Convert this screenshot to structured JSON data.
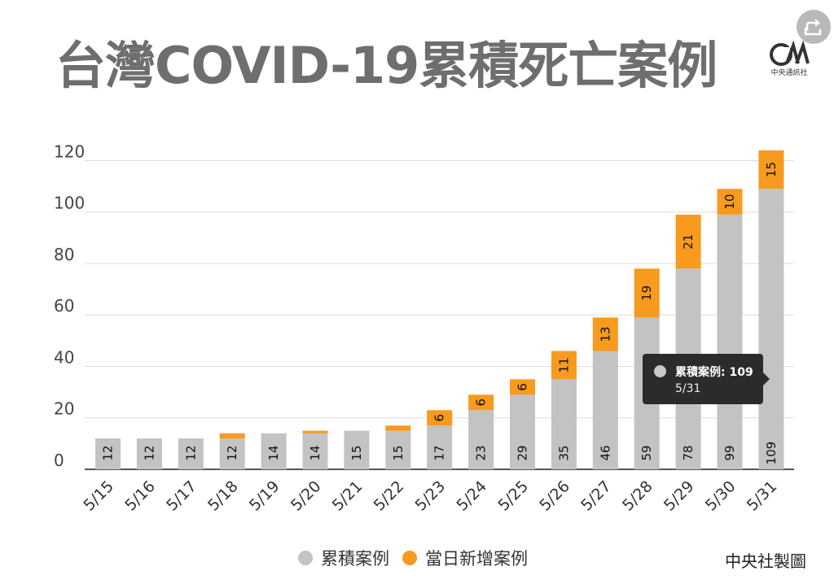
{
  "title": "台灣COVID-19累積死亡案例",
  "logo": {
    "text": "中央通訊社",
    "icon": "cna-logo-icon"
  },
  "share": {
    "icon": "share-icon"
  },
  "credit": "中央社製圖",
  "colors": {
    "cumulative": "#c3c3c3",
    "daily": "#f79a1e",
    "title": "#6e6e6e",
    "grid": "#dddddd"
  },
  "tooltip": {
    "label": "累積案例: 109",
    "date": "5/31"
  },
  "chart_data": {
    "type": "bar",
    "stacked": true,
    "categories": [
      "5/15",
      "5/16",
      "5/17",
      "5/18",
      "5/19",
      "5/20",
      "5/21",
      "5/22",
      "5/23",
      "5/24",
      "5/25",
      "5/26",
      "5/27",
      "5/28",
      "5/29",
      "5/30",
      "5/31"
    ],
    "series": [
      {
        "name": "累積案例",
        "values": [
          12,
          12,
          12,
          12,
          14,
          14,
          15,
          15,
          17,
          23,
          29,
          35,
          46,
          59,
          78,
          99,
          109
        ]
      },
      {
        "name": "當日新增案例",
        "values": [
          0,
          0,
          0,
          2,
          0,
          1,
          0,
          2,
          6,
          6,
          6,
          11,
          13,
          19,
          21,
          10,
          15
        ]
      }
    ],
    "series_labels_shown": [
      [
        12,
        12,
        12,
        12,
        14,
        14,
        15,
        15,
        17,
        23,
        29,
        35,
        46,
        59,
        78,
        99,
        109
      ],
      [
        null,
        null,
        null,
        null,
        null,
        null,
        null,
        null,
        6,
        6,
        6,
        11,
        13,
        19,
        21,
        10,
        15
      ]
    ],
    "yticks": [
      0,
      20,
      40,
      60,
      80,
      100,
      120
    ],
    "ylim": [
      0,
      125
    ],
    "grid": true,
    "legend_position": "bottom"
  }
}
